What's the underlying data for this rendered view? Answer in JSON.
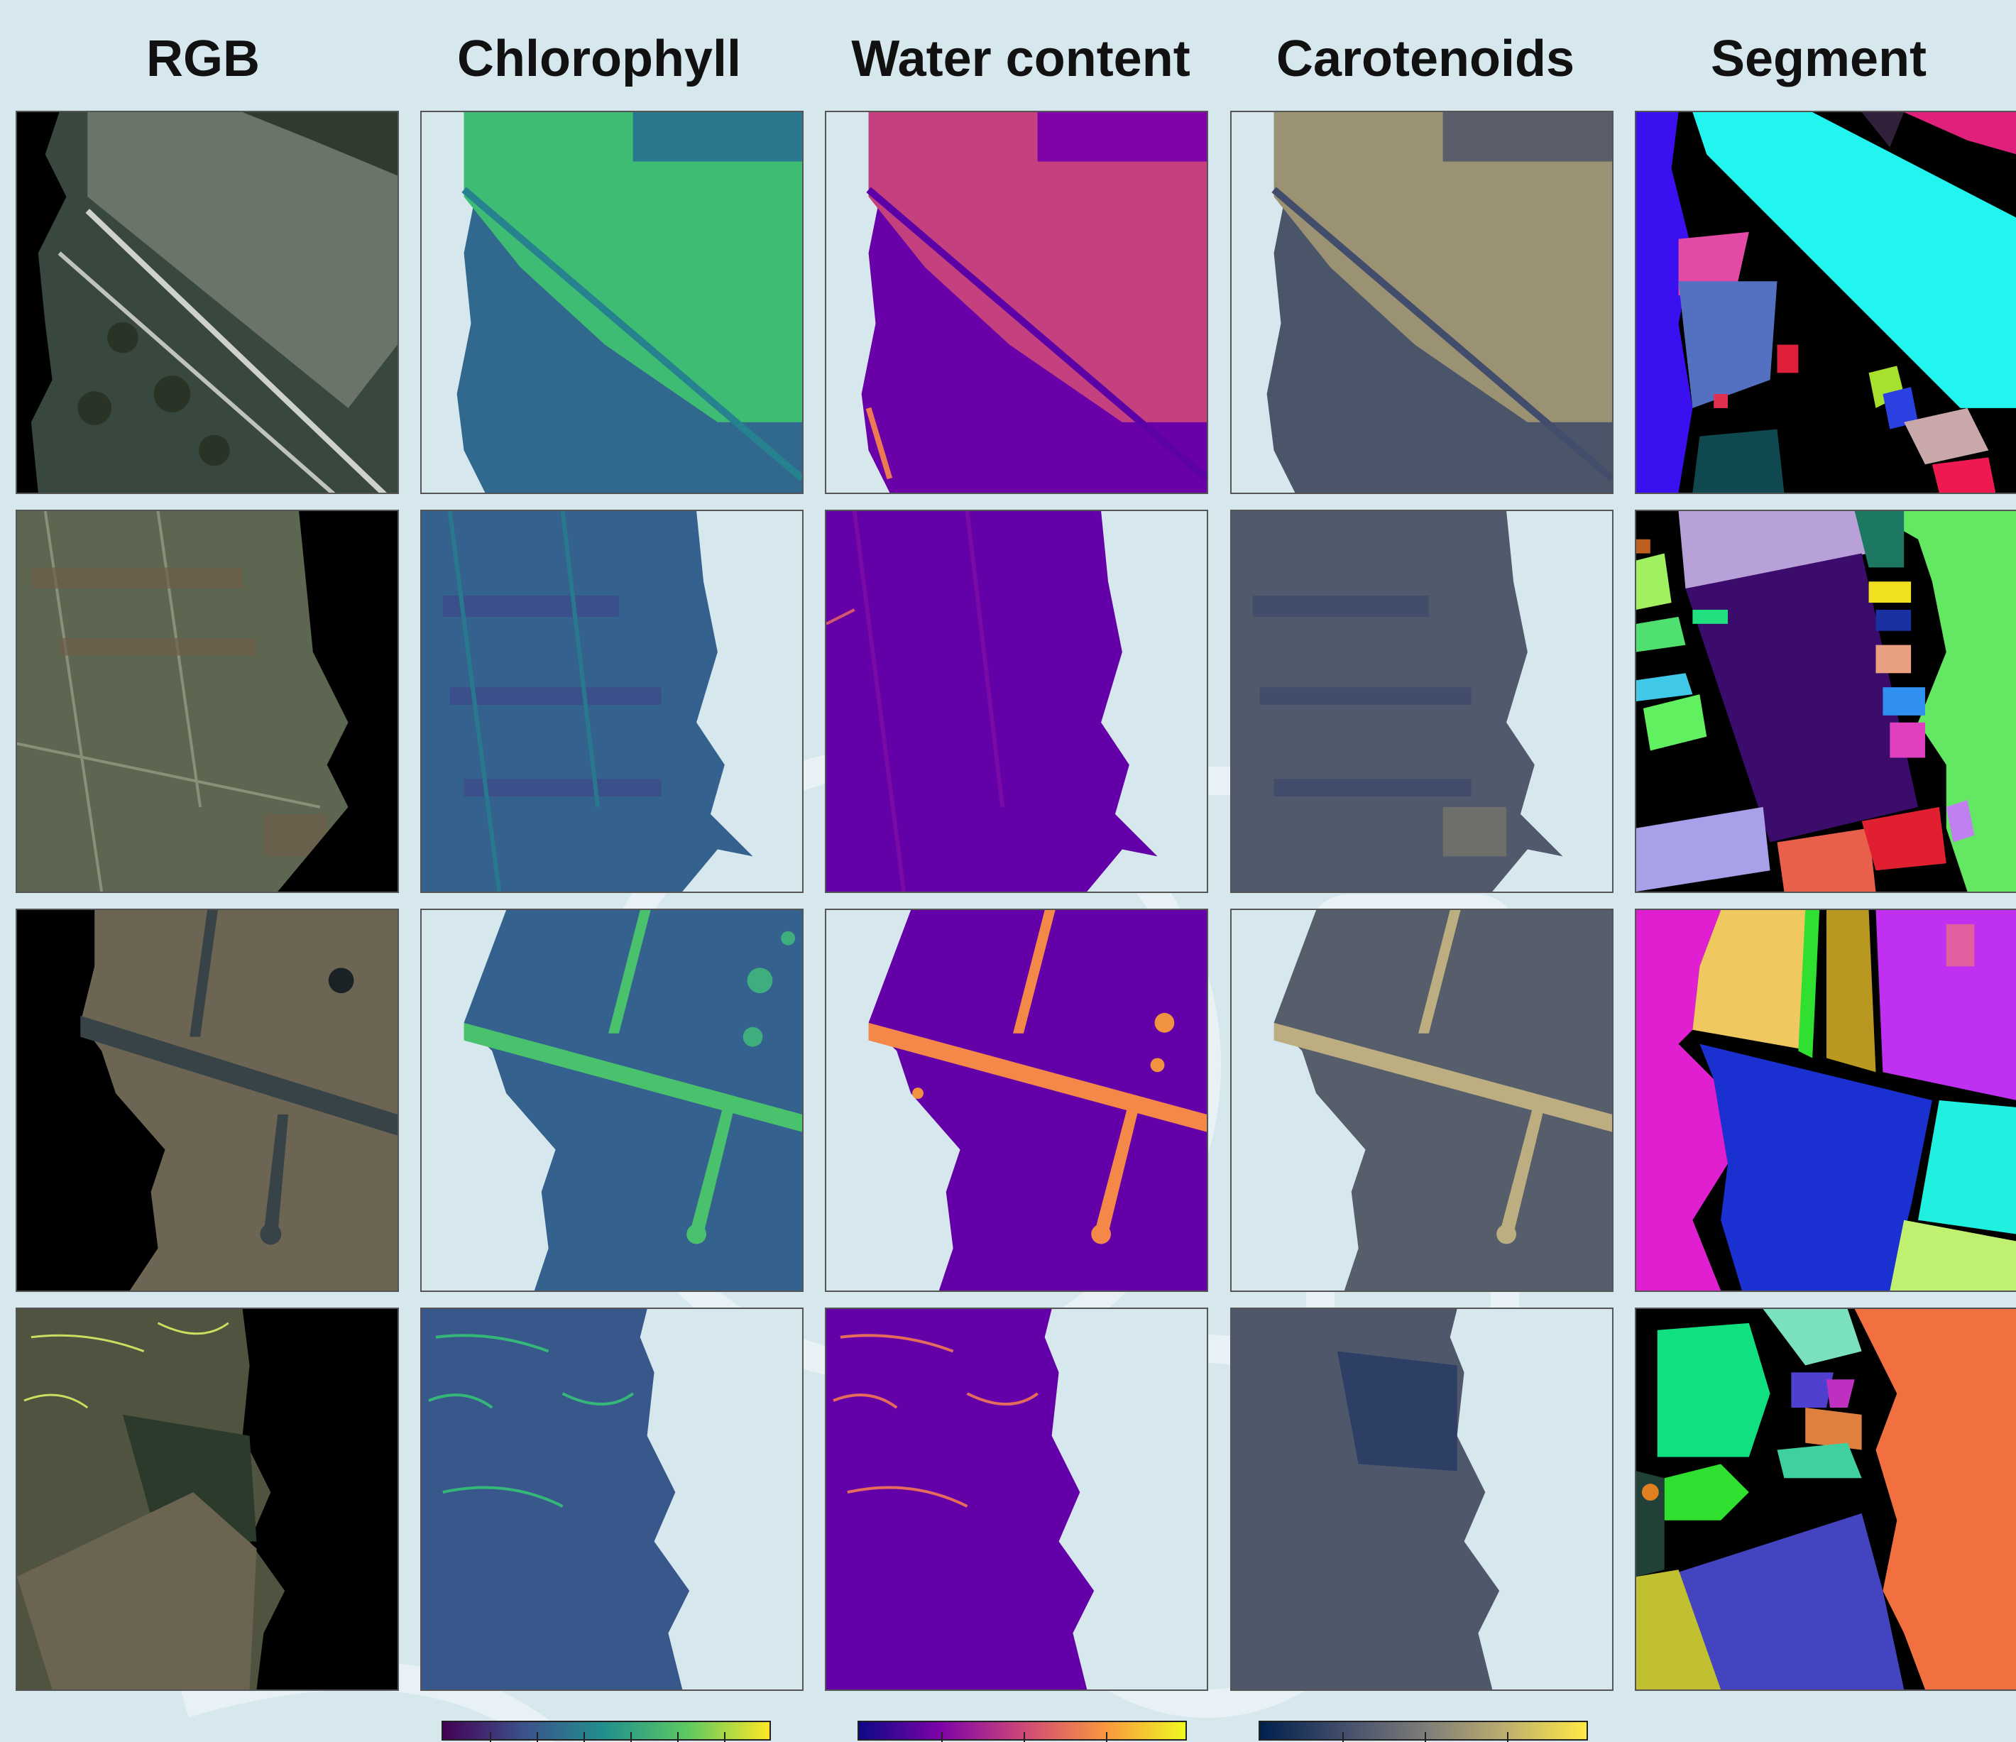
{
  "columns": [
    "RGB",
    "Chlorophyll",
    "Water content",
    "Carotenoids",
    "Segment"
  ],
  "colors": {
    "page_bg": "#d6e7ee",
    "viridis": [
      "#440154",
      "#3b528b",
      "#21918c",
      "#5ec962",
      "#fde725"
    ],
    "plasma": [
      "#0d0887",
      "#7e03a8",
      "#cc4778",
      "#f89540",
      "#f0f921"
    ],
    "cividis": [
      "#00204c",
      "#414d6b",
      "#7c7b78",
      "#bcae6f",
      "#ffe945"
    ]
  }
}
